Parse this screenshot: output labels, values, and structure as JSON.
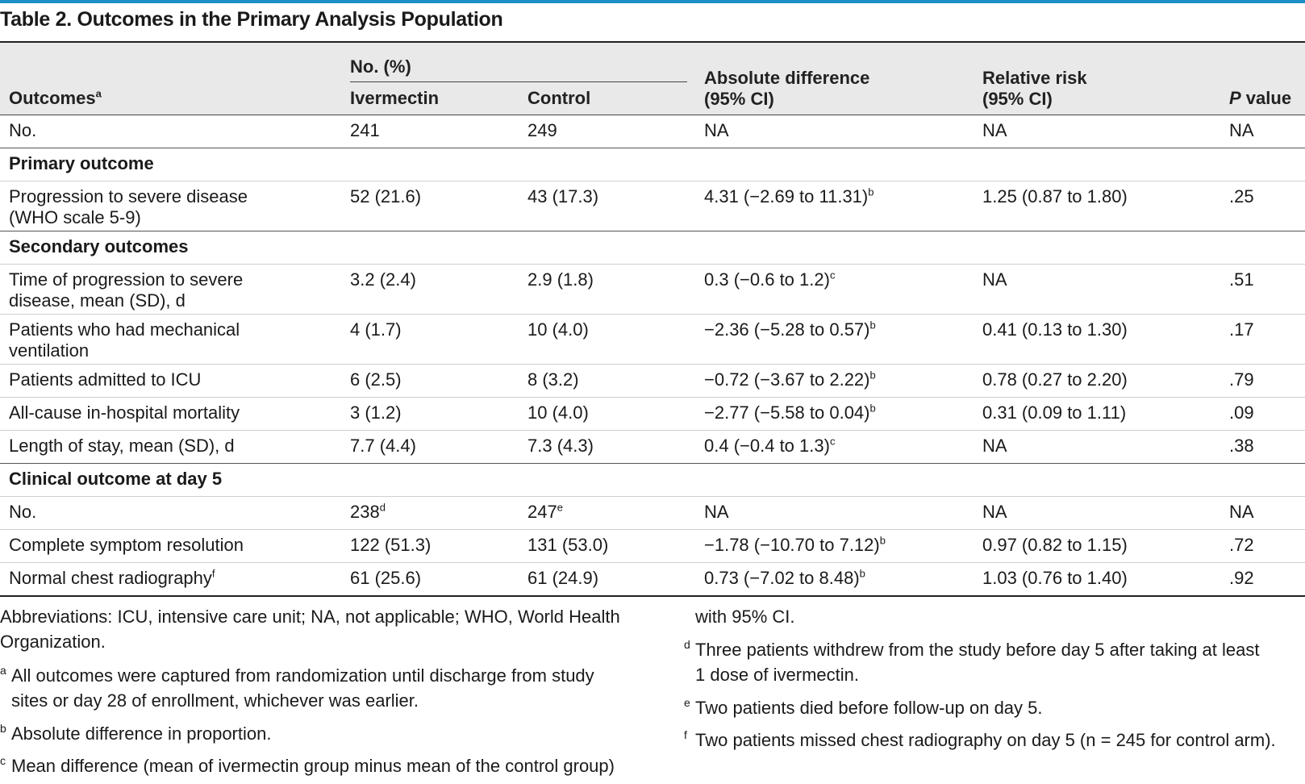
{
  "title": "Table 2. Outcomes in the Primary Analysis Population",
  "header": {
    "outcomes": "Outcomes",
    "outcomes_sup": "a",
    "group": "No. (%)",
    "ivermectin": "Ivermectin",
    "control": "Control",
    "abs_diff_1": "Absolute difference",
    "abs_diff_2": "(95% CI)",
    "rr_1": "Relative risk",
    "rr_2": "(95% CI)",
    "p_italic": "P",
    "p_rest": " value"
  },
  "rows": [
    {
      "l1": "No.",
      "l2": "",
      "iv": "241",
      "iv_sup": "",
      "ct": "249",
      "ct_sup": "",
      "ad": "NA",
      "ad_sup": "",
      "rr": "NA",
      "p": "NA"
    },
    {
      "section": "Primary outcome"
    },
    {
      "l1": "Progression to severe disease",
      "l2": "(WHO scale 5-9)",
      "iv": "52 (21.6)",
      "iv_sup": "",
      "ct": "43 (17.3)",
      "ct_sup": "",
      "ad": "4.31 (−2.69 to 11.31)",
      "ad_sup": "b",
      "rr": "1.25 (0.87 to 1.80)",
      "p": ".25"
    },
    {
      "section": "Secondary outcomes"
    },
    {
      "l1": "Time of progression to severe",
      "l2": "disease, mean (SD), d",
      "iv": "3.2 (2.4)",
      "iv_sup": "",
      "ct": "2.9 (1.8)",
      "ct_sup": "",
      "ad": "0.3 (−0.6 to 1.2)",
      "ad_sup": "c",
      "rr": "NA",
      "p": ".51"
    },
    {
      "l1": "Patients who had mechanical",
      "l2": "ventilation",
      "iv": "4 (1.7)",
      "iv_sup": "",
      "ct": "10 (4.0)",
      "ct_sup": "",
      "ad": "−2.36 (−5.28 to 0.57)",
      "ad_sup": "b",
      "rr": "0.41 (0.13 to 1.30)",
      "p": ".17"
    },
    {
      "l1": "Patients admitted to ICU",
      "l2": "",
      "iv": "6 (2.5)",
      "iv_sup": "",
      "ct": "8 (3.2)",
      "ct_sup": "",
      "ad": "−0.72 (−3.67 to 2.22)",
      "ad_sup": "b",
      "rr": "0.78 (0.27 to 2.20)",
      "p": ".79"
    },
    {
      "l1": "All-cause in-hospital mortality",
      "l2": "",
      "iv": "3 (1.2)",
      "iv_sup": "",
      "ct": "10 (4.0)",
      "ct_sup": "",
      "ad": "−2.77 (−5.58 to 0.04)",
      "ad_sup": "b",
      "rr": "0.31 (0.09 to 1.11)",
      "p": ".09"
    },
    {
      "l1": "Length of stay, mean (SD), d",
      "l2": "",
      "iv": "7.7 (4.4)",
      "iv_sup": "",
      "ct": "7.3 (4.3)",
      "ct_sup": "",
      "ad": "0.4 (−0.4 to 1.3)",
      "ad_sup": "c",
      "rr": "NA",
      "p": ".38"
    },
    {
      "section": "Clinical outcome at day 5"
    },
    {
      "l1": "No.",
      "l2": "",
      "iv": "238",
      "iv_sup": "d",
      "ct": "247",
      "ct_sup": "e",
      "ad": "NA",
      "ad_sup": "",
      "rr": "NA",
      "p": "NA"
    },
    {
      "l1": "Complete symptom resolution",
      "l2": "",
      "iv": "122 (51.3)",
      "iv_sup": "",
      "ct": "131 (53.0)",
      "ct_sup": "",
      "ad": "−1.78 (−10.70 to 7.12)",
      "ad_sup": "b",
      "rr": "0.97 (0.82 to 1.15)",
      "p": ".72"
    },
    {
      "l1": "Normal chest radiography",
      "l1_sup": "f",
      "l2": "",
      "iv": "61 (25.6)",
      "iv_sup": "",
      "ct": "61 (24.9)",
      "ct_sup": "",
      "ad": "0.73 (−7.02 to 8.48)",
      "ad_sup": "b",
      "rr": "1.03 (0.76 to 1.40)",
      "p": ".92"
    }
  ],
  "footnotes_left": {
    "abbrev_1": "Abbreviations: ICU, intensive care unit; NA, not applicable; WHO, World Health",
    "abbrev_2": "Organization.",
    "a_mark": "a",
    "a_1": "All outcomes were captured from randomization until discharge from study",
    "a_2": "sites or day 28 of enrollment, whichever was earlier.",
    "b_mark": "b",
    "b_1": "Absolute difference in proportion.",
    "c_mark": "c",
    "c_1": "Mean difference (mean of ivermectin group minus mean of the control group)"
  },
  "footnotes_right": {
    "c_2": "with 95% CI.",
    "d_mark": "d",
    "d_1": "Three patients withdrew from the study before day 5 after taking at least",
    "d_2": "1 dose of ivermectin.",
    "e_mark": "e",
    "e_1": "Two patients died before follow-up on day 5.",
    "f_mark": "f",
    "f_1": "Two patients missed chest radiography on day 5 (n = 245 for control arm)."
  }
}
